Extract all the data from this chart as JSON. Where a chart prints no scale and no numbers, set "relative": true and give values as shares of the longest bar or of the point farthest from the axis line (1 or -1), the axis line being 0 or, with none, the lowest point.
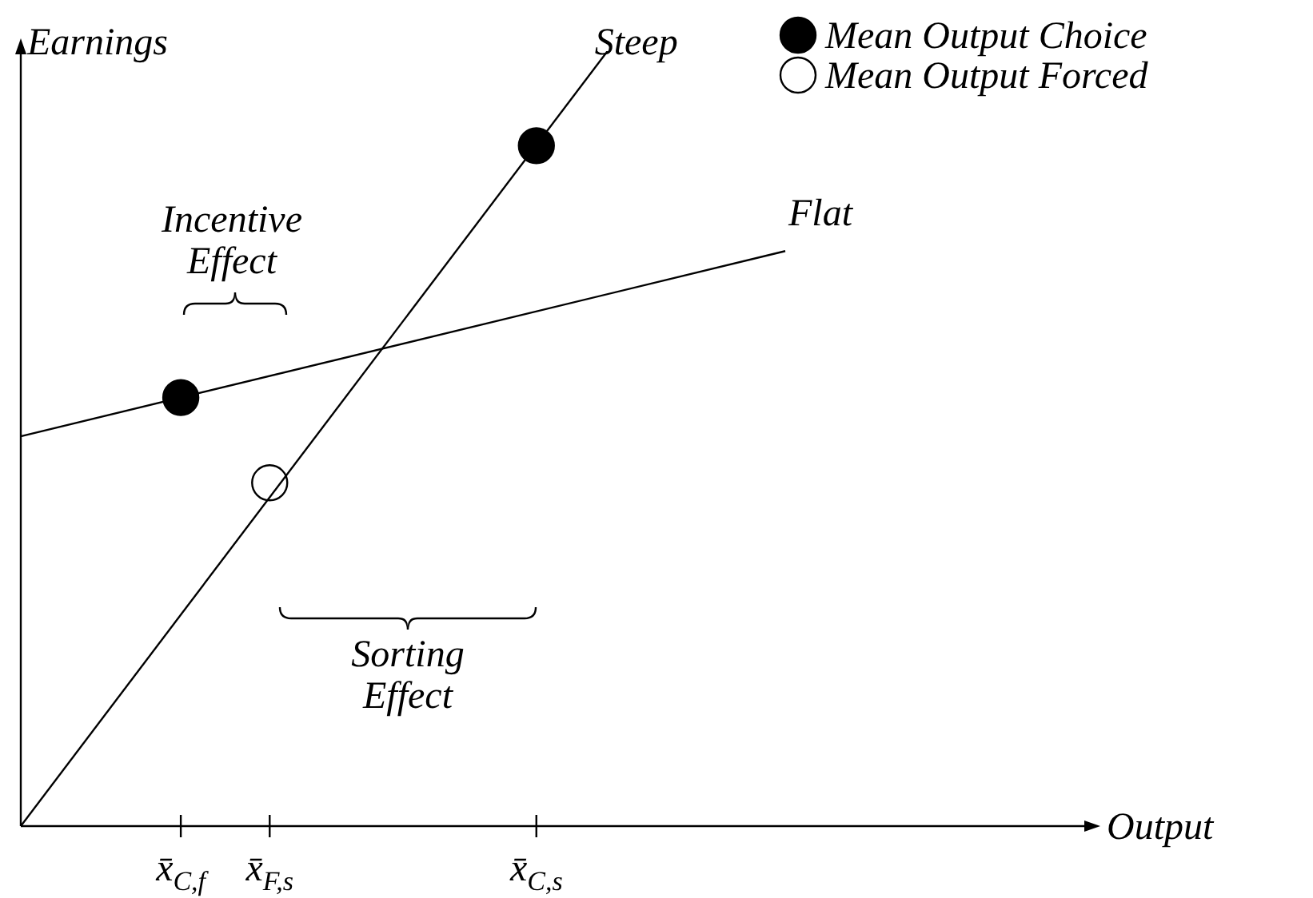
{
  "chart_data": {
    "type": "line",
    "relative": true,
    "xlabel": "Output",
    "ylabel": "Earnings",
    "categories": [
      null,
      null,
      null,
      null,
      null,
      null,
      null,
      null,
      null,
      "x̄$_{C,f}$",
      null,
      null,
      null,
      null,
      "x̄$_{F,s}$",
      null,
      null,
      null,
      null,
      null,
      null,
      null,
      null,
      null,
      null,
      null,
      null,
      null,
      null,
      "x̄$_{C,s}$",
      null,
      null,
      null,
      null,
      null,
      null,
      null,
      null,
      null,
      null,
      null,
      null,
      null,
      null,
      null,
      null,
      null,
      null,
      null,
      null,
      null,
      null,
      null,
      null,
      null,
      null,
      null,
      null,
      null,
      null,
      null
    ],
    "series": [
      {
        "name": "Steep",
        "color": "#000000",
        "values": [
          0,
          null,
          null,
          null,
          null,
          null,
          null,
          null,
          null,
          null,
          null,
          null,
          null,
          null,
          null,
          null,
          null,
          null,
          null,
          null,
          null,
          null,
          null,
          null,
          null,
          null,
          null,
          null,
          null,
          null,
          null,
          null,
          null,
          1,
          null,
          null,
          null,
          null,
          null,
          null,
          null,
          null,
          null,
          null,
          null,
          null,
          null,
          null,
          null,
          null,
          null,
          null,
          null,
          null,
          null,
          null,
          null,
          null,
          null,
          null,
          null
        ]
      },
      {
        "name": "Flat",
        "color": "#000000",
        "values": [
          0.503,
          null,
          null,
          null,
          null,
          null,
          null,
          null,
          null,
          null,
          null,
          null,
          null,
          null,
          null,
          null,
          null,
          null,
          null,
          null,
          null,
          null,
          null,
          null,
          null,
          null,
          null,
          null,
          null,
          null,
          null,
          null,
          null,
          null,
          null,
          null,
          null,
          null,
          null,
          null,
          null,
          null,
          null,
          0.742,
          null,
          null,
          null,
          null,
          null,
          null,
          null,
          null,
          null,
          null,
          null,
          null,
          null,
          null,
          null,
          null,
          null
        ]
      },
      {
        "name": "Mean Output Choice",
        "type": "scatter",
        "marker": "circle",
        "color": "#000000",
        "values": [
          null,
          null,
          null,
          null,
          null,
          null,
          null,
          null,
          null,
          0.553,
          null,
          null,
          null,
          null,
          null,
          null,
          null,
          null,
          null,
          null,
          null,
          null,
          null,
          null,
          null,
          null,
          null,
          null,
          null,
          0.878,
          null,
          null,
          null,
          null,
          null,
          null,
          null,
          null,
          null,
          null,
          null,
          null,
          null,
          null,
          null,
          null,
          null,
          null,
          null,
          null,
          null,
          null,
          null,
          null,
          null,
          null,
          null,
          null,
          null,
          null,
          null
        ]
      },
      {
        "name": "Mean Output Forced",
        "type": "scatter",
        "marker": "circle",
        "color": "#ffffff",
        "values": [
          null,
          null,
          null,
          null,
          null,
          null,
          null,
          null,
          null,
          null,
          null,
          null,
          null,
          null,
          0.443,
          null,
          null,
          null,
          null,
          null,
          null,
          null,
          null,
          null,
          null,
          null,
          null,
          null,
          null,
          null,
          null,
          null,
          null,
          null,
          null,
          null,
          null,
          null,
          null,
          null,
          null,
          null,
          null,
          null,
          null,
          null,
          null,
          null,
          null,
          null,
          null,
          null,
          null,
          null,
          null,
          null,
          null,
          null,
          null,
          null,
          null
        ]
      }
    ],
    "annotations": [
      "Incentive\nEffect",
      "Sorting\nEffect"
    ],
    "legend": "top right"
  }
}
